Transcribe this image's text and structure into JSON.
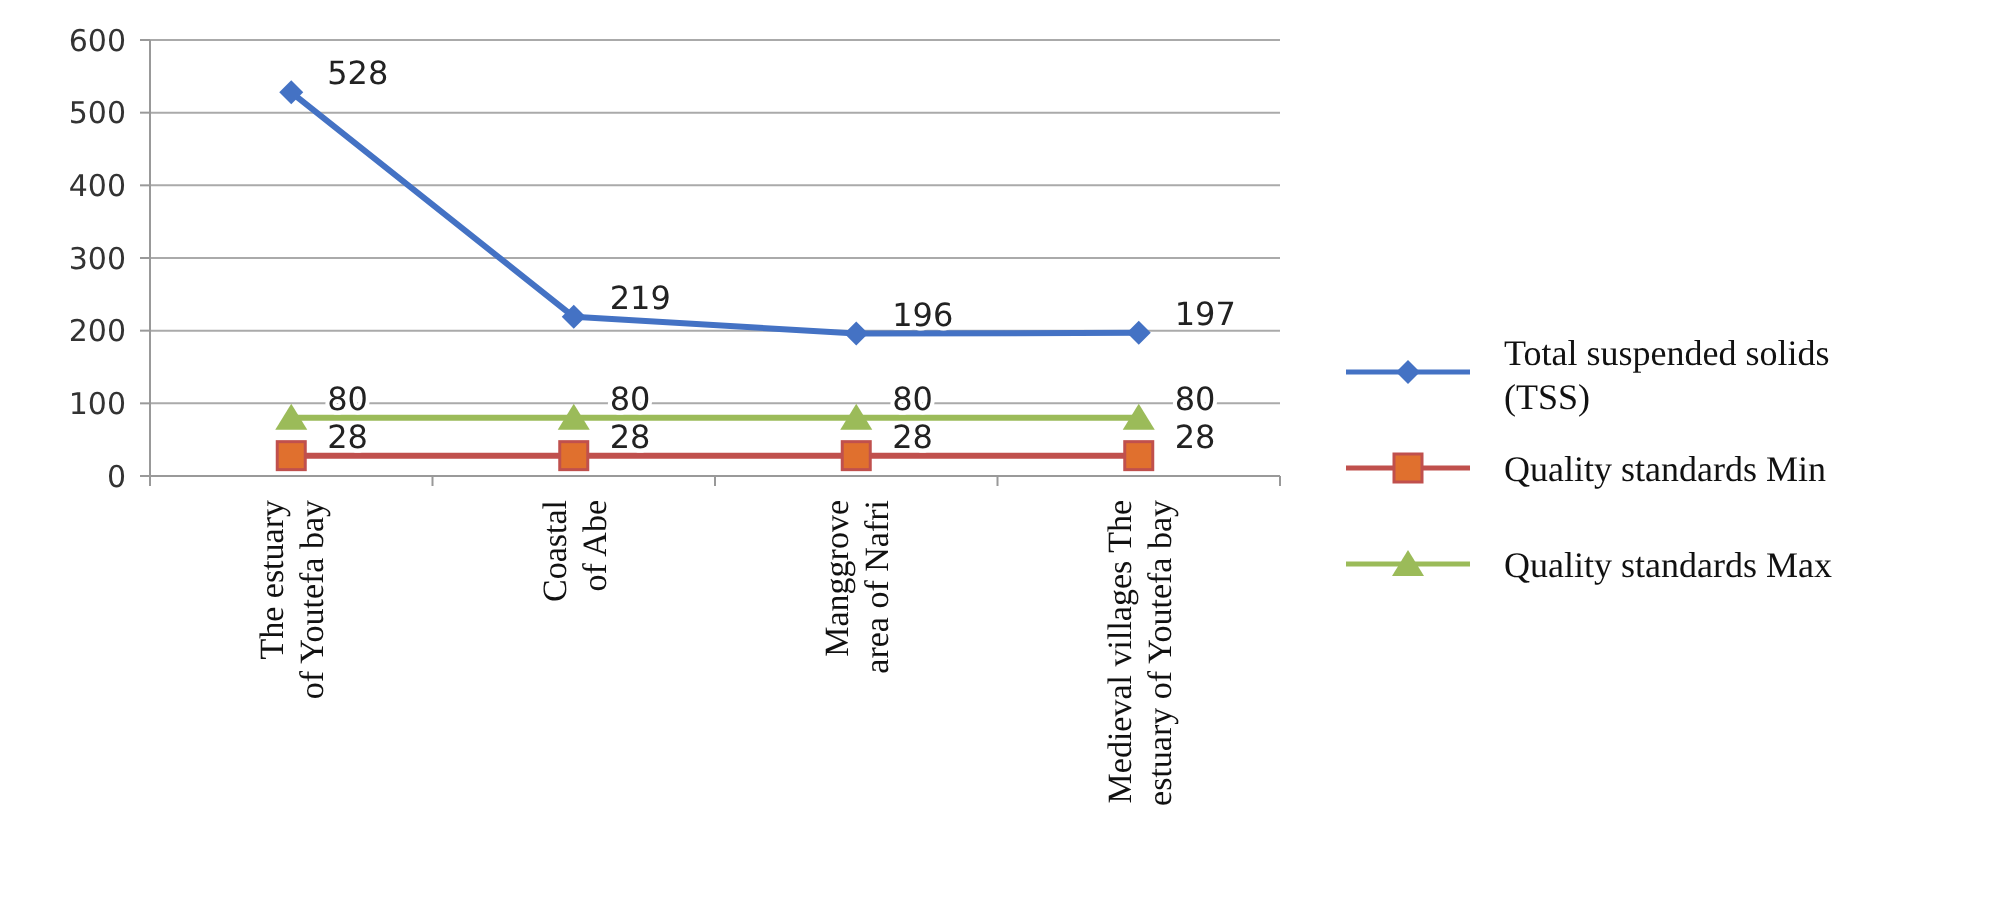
{
  "chart_data": {
    "type": "line",
    "categories": [
      "The estuary of Youtefa bay",
      "Coastal of Abe",
      "Manggrove area of Nafri",
      "Medieval villages The estuary of Youtefa bay"
    ],
    "series": [
      {
        "name": "Total suspended solids (TSS)",
        "color": "#4472c4",
        "marker": "diamond",
        "values": [
          528,
          219,
          196,
          197
        ]
      },
      {
        "name": "Quality standards Min",
        "color": "#c0504d",
        "marker": "square",
        "values": [
          28,
          28,
          28,
          28
        ]
      },
      {
        "name": "Quality standards Max",
        "color": "#9bbb59",
        "marker": "triangle",
        "values": [
          80,
          80,
          80,
          80
        ]
      }
    ],
    "ylim": [
      0,
      600
    ],
    "yticks": [
      0,
      100,
      200,
      300,
      400,
      500,
      600
    ],
    "grid": "y",
    "legend": "right",
    "data_labels": true
  }
}
